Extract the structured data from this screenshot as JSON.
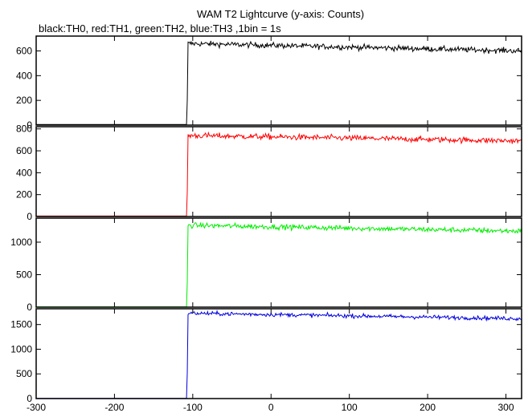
{
  "chart_data": {
    "type": "line",
    "title": "WAM T2 Lightcurve (y-axis: Counts)",
    "subtitle": "black:TH0, red:TH1, green:TH2, blue:TH3 ,1bin = 1s",
    "xlabel": "",
    "ylabel": "",
    "xlim": [
      -300,
      320
    ],
    "x_ticks": [
      -300,
      -200,
      -100,
      0,
      100,
      200,
      300
    ],
    "grid": false,
    "legend": "none",
    "panels": [
      {
        "name": "TH0",
        "color": "#000000",
        "ylim": [
          0,
          720
        ],
        "y_ticks": [
          0,
          200,
          400,
          600
        ],
        "pre_level": 5,
        "onset": -106,
        "peak": 660,
        "end_level": 600,
        "noise": 22
      },
      {
        "name": "TH1",
        "color": "#ff0000",
        "ylim": [
          0,
          820
        ],
        "y_ticks": [
          0,
          200,
          400,
          600,
          800
        ],
        "pre_level": 5,
        "onset": -106,
        "peak": 740,
        "end_level": 690,
        "noise": 26
      },
      {
        "name": "TH2",
        "color": "#00ee00",
        "ylim": [
          0,
          1370
        ],
        "y_ticks": [
          0,
          500,
          1000
        ],
        "pre_level": 5,
        "onset": -106,
        "peak": 1260,
        "end_level": 1170,
        "noise": 40
      },
      {
        "name": "TH3",
        "color": "#0000dd",
        "ylim": [
          0,
          1820
        ],
        "y_ticks": [
          0,
          500,
          1000,
          1500
        ],
        "pre_level": 5,
        "onset": -106,
        "peak": 1730,
        "end_level": 1620,
        "noise": 40
      }
    ]
  }
}
